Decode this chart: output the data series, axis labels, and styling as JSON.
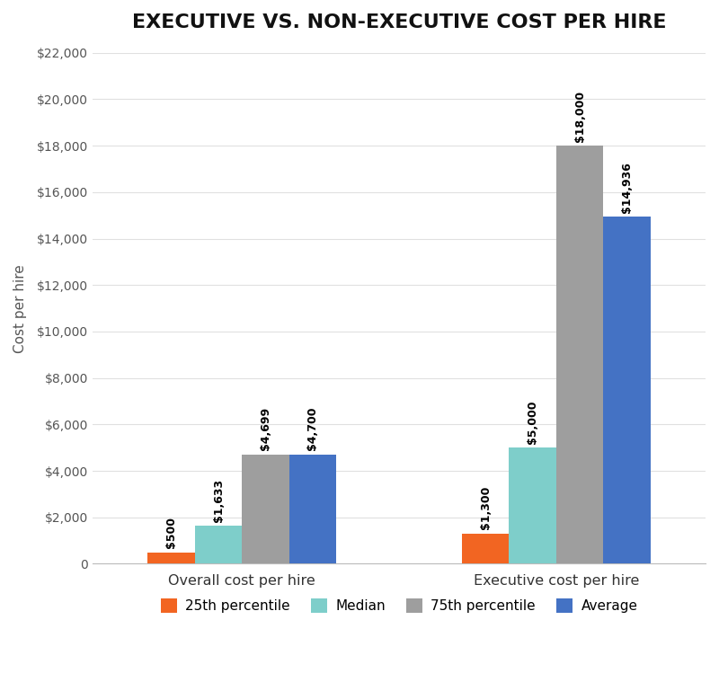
{
  "title": "EXECUTIVE VS. NON-EXECUTIVE COST PER HIRE",
  "categories": [
    "Overall cost per hire",
    "Executive cost per hire"
  ],
  "series": {
    "25th percentile": {
      "values": [
        500,
        1300
      ],
      "color": "#f26522"
    },
    "Median": {
      "values": [
        1633,
        5000
      ],
      "color": "#7ececa"
    },
    "75th percentile": {
      "values": [
        4699,
        18000
      ],
      "color": "#9e9e9e"
    },
    "Average": {
      "values": [
        4700,
        14936
      ],
      "color": "#4472c4"
    }
  },
  "labels": {
    "Overall cost per hire": [
      "$500",
      "$1,633",
      "$4,699",
      "$4,700"
    ],
    "Executive cost per hire": [
      "$1,300",
      "$5,000",
      "$18,000",
      "$14,936"
    ]
  },
  "ylabel": "Cost per hire",
  "ylim": [
    0,
    22000
  ],
  "yticks": [
    0,
    2000,
    4000,
    6000,
    8000,
    10000,
    12000,
    14000,
    16000,
    18000,
    20000,
    22000
  ],
  "ytick_labels": [
    "0",
    "$2,000",
    "$4,000",
    "$6,000",
    "$8,000",
    "$10,000",
    "$12,000",
    "$14,000",
    "$16,000",
    "$18,000",
    "$20,000",
    "$22,000"
  ],
  "background_color": "#ffffff",
  "title_fontsize": 16,
  "label_fontsize": 9,
  "bar_width": 0.12,
  "group_centers": [
    0.25,
    1.05
  ]
}
